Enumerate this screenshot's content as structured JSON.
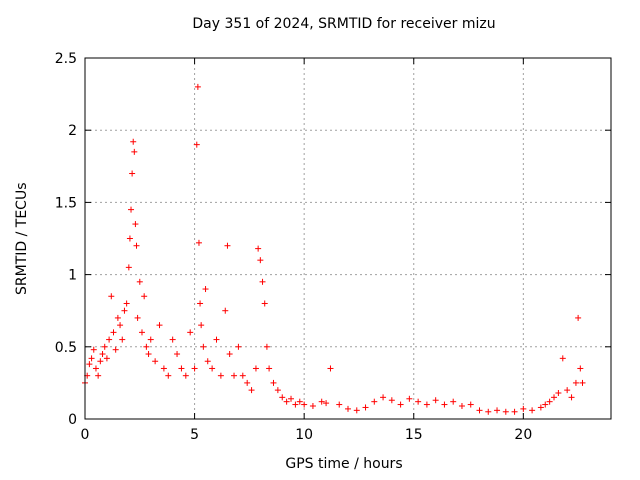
{
  "chart_data": {
    "type": "scatter",
    "title": "Day 351 of 2024, SRMTID for receiver mizu",
    "xlabel": "GPS time / hours",
    "ylabel": "SRMTID / TECUs",
    "xlim": [
      0,
      24
    ],
    "ylim": [
      0,
      2.5
    ],
    "xticks": [
      0,
      5,
      10,
      15,
      20
    ],
    "xtick_labels": [
      "0",
      "5",
      "10",
      "15",
      "20"
    ],
    "yticks": [
      0,
      0.5,
      1,
      1.5,
      2,
      2.5
    ],
    "ytick_labels": [
      "0",
      "0.5",
      "1",
      "1.5",
      "2",
      "2.5"
    ],
    "grid": true,
    "marker": "+",
    "marker_color": "#ff0000",
    "series": [
      {
        "name": "SRMTID",
        "x": [
          0.0,
          0.1,
          0.2,
          0.3,
          0.4,
          0.5,
          0.6,
          0.7,
          0.8,
          0.9,
          1.0,
          1.1,
          1.2,
          1.3,
          1.4,
          1.5,
          1.6,
          1.7,
          1.8,
          1.9,
          2.0,
          2.05,
          2.1,
          2.15,
          2.2,
          2.25,
          2.3,
          2.35,
          2.4,
          2.5,
          2.6,
          2.7,
          2.8,
          2.9,
          3.0,
          3.2,
          3.4,
          3.6,
          3.8,
          4.0,
          4.2,
          4.4,
          4.6,
          4.8,
          5.0,
          5.1,
          5.15,
          5.2,
          5.25,
          5.3,
          5.4,
          5.5,
          5.6,
          5.8,
          6.0,
          6.2,
          6.4,
          6.5,
          6.6,
          6.8,
          7.0,
          7.2,
          7.4,
          7.6,
          7.8,
          7.9,
          8.0,
          8.1,
          8.2,
          8.3,
          8.4,
          8.6,
          8.8,
          9.0,
          9.2,
          9.4,
          9.6,
          9.8,
          10.0,
          10.4,
          10.8,
          11.0,
          11.2,
          11.6,
          12.0,
          12.4,
          12.8,
          13.2,
          13.6,
          14.0,
          14.4,
          14.8,
          15.2,
          15.6,
          16.0,
          16.4,
          16.8,
          17.2,
          17.6,
          18.0,
          18.4,
          18.8,
          19.2,
          19.6,
          20.0,
          20.4,
          20.8,
          21.0,
          21.2,
          21.4,
          21.6,
          21.8,
          22.0,
          22.2,
          22.4,
          22.5,
          22.6,
          22.7
        ],
        "values": [
          0.25,
          0.3,
          0.38,
          0.42,
          0.48,
          0.35,
          0.3,
          0.4,
          0.45,
          0.5,
          0.42,
          0.55,
          0.85,
          0.6,
          0.48,
          0.7,
          0.65,
          0.55,
          0.75,
          0.8,
          1.05,
          1.25,
          1.45,
          1.7,
          1.92,
          1.85,
          1.35,
          1.2,
          0.7,
          0.95,
          0.6,
          0.85,
          0.5,
          0.45,
          0.55,
          0.4,
          0.65,
          0.35,
          0.3,
          0.55,
          0.45,
          0.35,
          0.3,
          0.6,
          0.35,
          1.9,
          2.3,
          1.22,
          0.8,
          0.65,
          0.5,
          0.9,
          0.4,
          0.35,
          0.55,
          0.3,
          0.75,
          1.2,
          0.45,
          0.3,
          0.5,
          0.3,
          0.25,
          0.2,
          0.35,
          1.18,
          1.1,
          0.95,
          0.8,
          0.5,
          0.35,
          0.25,
          0.2,
          0.15,
          0.12,
          0.14,
          0.1,
          0.12,
          0.1,
          0.09,
          0.12,
          0.11,
          0.35,
          0.1,
          0.07,
          0.06,
          0.08,
          0.12,
          0.15,
          0.13,
          0.1,
          0.14,
          0.12,
          0.1,
          0.13,
          0.1,
          0.12,
          0.09,
          0.1,
          0.06,
          0.05,
          0.06,
          0.05,
          0.05,
          0.07,
          0.06,
          0.08,
          0.1,
          0.12,
          0.15,
          0.18,
          0.42,
          0.2,
          0.15,
          0.25,
          0.7,
          0.35,
          0.25
        ]
      }
    ]
  }
}
